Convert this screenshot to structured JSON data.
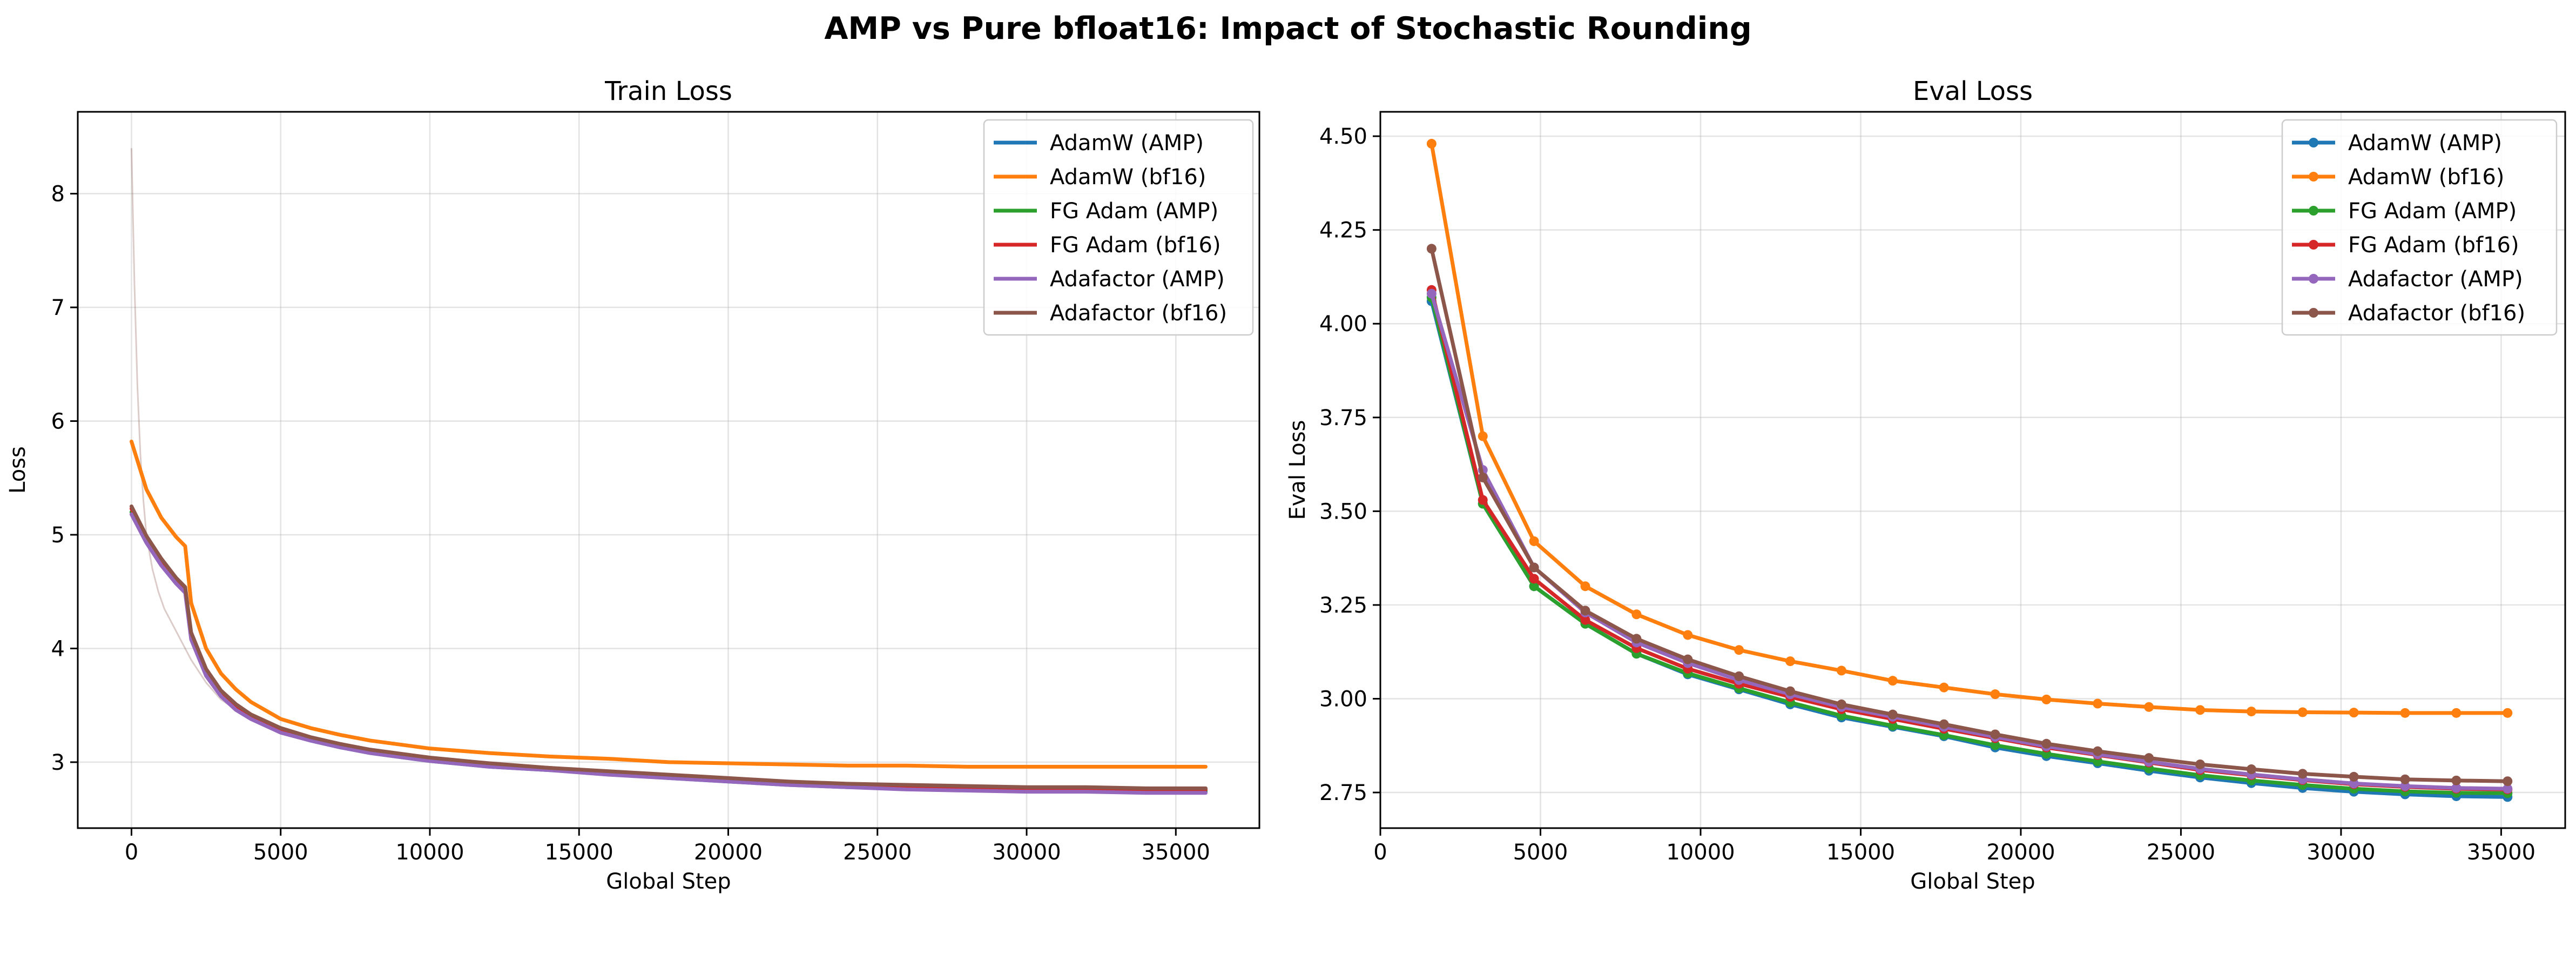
{
  "figure": {
    "suptitle": "AMP vs Pure bfloat16: Impact of Stochastic Rounding"
  },
  "colors": {
    "AdamW (AMP)": "#1f77b4",
    "AdamW (bf16)": "#ff7f0e",
    "FG Adam (AMP)": "#2ca02c",
    "FG Adam (bf16)": "#d62728",
    "Adafactor (AMP)": "#9467bd",
    "Adafactor (bf16)": "#8c564b"
  },
  "chart_data": [
    {
      "type": "line",
      "title": "Train Loss",
      "xlabel": "Global Step",
      "ylabel": "Loss",
      "xlim": [
        -1800,
        37800
      ],
      "ylim": [
        2.42,
        8.72
      ],
      "xticks": [
        0,
        5000,
        10000,
        15000,
        20000,
        25000,
        30000,
        35000
      ],
      "yticks": [
        3,
        4,
        5,
        6,
        7,
        8
      ],
      "grid": true,
      "legend": "top-right",
      "raw_trace": {
        "x": [
          0,
          100,
          200,
          300,
          400,
          500,
          700,
          900,
          1100,
          1300,
          1500,
          1700,
          2000,
          2500,
          3000,
          4000
        ],
        "y": [
          8.4,
          7.2,
          6.3,
          5.7,
          5.3,
          5.0,
          4.7,
          4.5,
          4.35,
          4.25,
          4.15,
          4.05,
          3.9,
          3.7,
          3.55,
          3.38
        ]
      },
      "series": [
        {
          "name": "AdamW (AMP)",
          "x": [
            0,
            500,
            1000,
            1500,
            1800,
            2000,
            2500,
            3000,
            3500,
            4000,
            5000,
            6000,
            7000,
            8000,
            10000,
            12000,
            14000,
            16000,
            18000,
            20000,
            22000,
            24000,
            26000,
            28000,
            30000,
            32000,
            34000,
            36000
          ],
          "y": [
            5.2,
            4.95,
            4.75,
            4.58,
            4.5,
            4.1,
            3.78,
            3.6,
            3.48,
            3.39,
            3.27,
            3.19,
            3.13,
            3.08,
            3.01,
            2.96,
            2.93,
            2.9,
            2.86,
            2.83,
            2.8,
            2.78,
            2.77,
            2.76,
            2.75,
            2.75,
            2.74,
            2.74
          ]
        },
        {
          "name": "AdamW (bf16)",
          "x": [
            0,
            500,
            1000,
            1500,
            1800,
            2000,
            2500,
            3000,
            3500,
            4000,
            5000,
            6000,
            7000,
            8000,
            10000,
            12000,
            14000,
            16000,
            18000,
            20000,
            22000,
            24000,
            26000,
            28000,
            30000,
            32000,
            34000,
            36000
          ],
          "y": [
            5.82,
            5.4,
            5.15,
            4.98,
            4.9,
            4.4,
            4.0,
            3.78,
            3.64,
            3.53,
            3.38,
            3.3,
            3.24,
            3.19,
            3.12,
            3.08,
            3.05,
            3.03,
            3.0,
            2.99,
            2.98,
            2.97,
            2.97,
            2.96,
            2.96,
            2.96,
            2.96,
            2.96
          ]
        },
        {
          "name": "FG Adam (AMP)",
          "x": [
            0,
            500,
            1000,
            1500,
            1800,
            2000,
            2500,
            3000,
            3500,
            4000,
            5000,
            6000,
            7000,
            8000,
            10000,
            12000,
            14000,
            16000,
            18000,
            20000,
            22000,
            24000,
            26000,
            28000,
            30000,
            32000,
            34000,
            36000
          ],
          "y": [
            5.2,
            4.95,
            4.75,
            4.58,
            4.5,
            4.1,
            3.78,
            3.6,
            3.48,
            3.39,
            3.27,
            3.2,
            3.14,
            3.09,
            3.02,
            2.97,
            2.94,
            2.9,
            2.87,
            2.84,
            2.81,
            2.79,
            2.77,
            2.76,
            2.76,
            2.75,
            2.75,
            2.75
          ]
        },
        {
          "name": "FG Adam (bf16)",
          "x": [
            0,
            500,
            1000,
            1500,
            1800,
            2000,
            2500,
            3000,
            3500,
            4000,
            5000,
            6000,
            7000,
            8000,
            10000,
            12000,
            14000,
            16000,
            18000,
            20000,
            22000,
            24000,
            26000,
            28000,
            30000,
            32000,
            34000,
            36000
          ],
          "y": [
            5.23,
            4.97,
            4.77,
            4.6,
            4.52,
            4.12,
            3.8,
            3.62,
            3.5,
            3.41,
            3.29,
            3.21,
            3.15,
            3.1,
            3.03,
            2.98,
            2.95,
            2.91,
            2.88,
            2.85,
            2.82,
            2.8,
            2.79,
            2.78,
            2.77,
            2.77,
            2.76,
            2.76
          ]
        },
        {
          "name": "Adafactor (AMP)",
          "x": [
            0,
            500,
            1000,
            1500,
            1800,
            2000,
            2500,
            3000,
            3500,
            4000,
            5000,
            6000,
            7000,
            8000,
            10000,
            12000,
            14000,
            16000,
            18000,
            20000,
            22000,
            24000,
            26000,
            28000,
            30000,
            32000,
            34000,
            36000
          ],
          "y": [
            5.18,
            4.93,
            4.73,
            4.57,
            4.49,
            4.08,
            3.76,
            3.58,
            3.46,
            3.38,
            3.26,
            3.19,
            3.13,
            3.08,
            3.01,
            2.96,
            2.93,
            2.89,
            2.86,
            2.83,
            2.8,
            2.78,
            2.76,
            2.75,
            2.74,
            2.74,
            2.73,
            2.73
          ]
        },
        {
          "name": "Adafactor (bf16)",
          "x": [
            0,
            500,
            1000,
            1500,
            1800,
            2000,
            2500,
            3000,
            3500,
            4000,
            5000,
            6000,
            7000,
            8000,
            10000,
            12000,
            14000,
            16000,
            18000,
            20000,
            22000,
            24000,
            26000,
            28000,
            30000,
            32000,
            34000,
            36000
          ],
          "y": [
            5.25,
            4.99,
            4.79,
            4.62,
            4.54,
            4.14,
            3.82,
            3.63,
            3.51,
            3.42,
            3.3,
            3.22,
            3.16,
            3.11,
            3.04,
            2.99,
            2.95,
            2.92,
            2.89,
            2.86,
            2.83,
            2.81,
            2.8,
            2.79,
            2.78,
            2.78,
            2.77,
            2.77
          ]
        }
      ]
    },
    {
      "type": "line",
      "title": "Eval Loss",
      "xlabel": "Global Step",
      "ylabel": "Eval Loss",
      "xlim": [
        0,
        37000
      ],
      "ylim": [
        2.655,
        4.565
      ],
      "xticks": [
        0,
        5000,
        10000,
        15000,
        20000,
        25000,
        30000,
        35000
      ],
      "yticks": [
        2.75,
        3.0,
        3.25,
        3.5,
        3.75,
        4.0,
        4.25,
        4.5
      ],
      "grid": true,
      "legend": "top-right",
      "markers": true,
      "x": [
        1600,
        3200,
        4800,
        6400,
        8000,
        9600,
        11200,
        12800,
        14400,
        16000,
        17600,
        19200,
        20800,
        22400,
        24000,
        25600,
        27200,
        28800,
        30400,
        32000,
        33600,
        35200
      ],
      "series": [
        {
          "name": "AdamW (AMP)",
          "y": [
            4.06,
            3.52,
            3.3,
            3.2,
            3.12,
            3.065,
            3.025,
            2.985,
            2.95,
            2.925,
            2.9,
            2.87,
            2.847,
            2.828,
            2.808,
            2.79,
            2.775,
            2.762,
            2.752,
            2.745,
            2.74,
            2.738
          ]
        },
        {
          "name": "AdamW (bf16)",
          "y": [
            4.48,
            3.7,
            3.42,
            3.3,
            3.225,
            3.17,
            3.13,
            3.1,
            3.075,
            3.048,
            3.03,
            3.012,
            2.998,
            2.987,
            2.978,
            2.97,
            2.966,
            2.964,
            2.963,
            2.962,
            2.962,
            2.962
          ]
        },
        {
          "name": "FG Adam (AMP)",
          "y": [
            4.07,
            3.52,
            3.3,
            3.2,
            3.12,
            3.068,
            3.028,
            2.99,
            2.955,
            2.928,
            2.903,
            2.876,
            2.853,
            2.833,
            2.814,
            2.796,
            2.782,
            2.77,
            2.76,
            2.753,
            2.749,
            2.748
          ]
        },
        {
          "name": "FG Adam (bf16)",
          "y": [
            4.09,
            3.53,
            3.32,
            3.21,
            3.135,
            3.08,
            3.04,
            3.005,
            2.972,
            2.946,
            2.92,
            2.895,
            2.87,
            2.85,
            2.83,
            2.81,
            2.796,
            2.783,
            2.772,
            2.765,
            2.76,
            2.758
          ]
        },
        {
          "name": "Adafactor (AMP)",
          "y": [
            4.08,
            3.61,
            3.35,
            3.23,
            3.15,
            3.095,
            3.05,
            3.012,
            2.978,
            2.952,
            2.925,
            2.898,
            2.873,
            2.852,
            2.832,
            2.813,
            2.798,
            2.785,
            2.774,
            2.767,
            2.762,
            2.76
          ]
        },
        {
          "name": "Adafactor (bf16)",
          "y": [
            4.2,
            3.59,
            3.35,
            3.235,
            3.16,
            3.105,
            3.06,
            3.02,
            2.985,
            2.958,
            2.932,
            2.905,
            2.88,
            2.86,
            2.842,
            2.825,
            2.812,
            2.8,
            2.792,
            2.785,
            2.782,
            2.78
          ]
        }
      ]
    }
  ]
}
